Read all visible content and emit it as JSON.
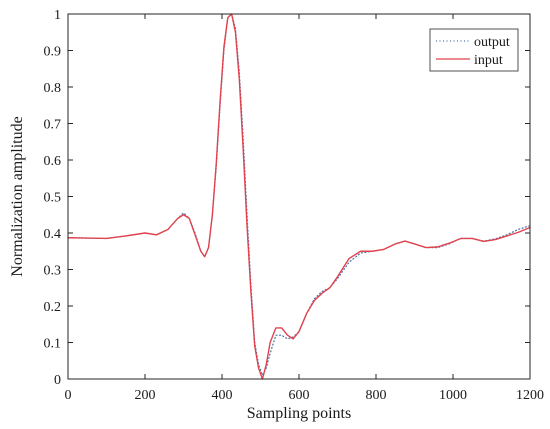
{
  "chart_data": {
    "type": "line",
    "xlabel": "Sampling points",
    "ylabel": "Normalization amplitude",
    "xlim": [
      0,
      1200
    ],
    "ylim": [
      0,
      1
    ],
    "xticks": [
      0,
      200,
      400,
      600,
      800,
      1000,
      1200
    ],
    "yticks": [
      0,
      0.1,
      0.2,
      0.3,
      0.4,
      0.5,
      0.6,
      0.7,
      0.8,
      0.9,
      1
    ],
    "x_tick_labels": [
      "0",
      "200",
      "400",
      "600",
      "800",
      "1000",
      "1200"
    ],
    "y_tick_labels": [
      "0",
      "0.1",
      "0.2",
      "0.3",
      "0.4",
      "0.5",
      "0.6",
      "0.7",
      "0.8",
      "0.9",
      "1"
    ],
    "grid": false,
    "box": true,
    "legend_position": "top-right",
    "series": [
      {
        "name": "output",
        "style": "dotted",
        "color": "#4a6fa5",
        "x": [
          0,
          50,
          100,
          150,
          200,
          230,
          260,
          285,
          300,
          315,
          330,
          345,
          355,
          365,
          375,
          385,
          395,
          405,
          415,
          425,
          435,
          445,
          455,
          465,
          475,
          485,
          495,
          505,
          515,
          525,
          540,
          555,
          570,
          585,
          600,
          620,
          640,
          660,
          680,
          700,
          730,
          760,
          790,
          820,
          850,
          875,
          900,
          930,
          960,
          990,
          1020,
          1050,
          1080,
          1110,
          1140,
          1170,
          1200
        ],
        "y": [
          0.387,
          0.386,
          0.385,
          0.392,
          0.4,
          0.395,
          0.41,
          0.44,
          0.455,
          0.44,
          0.4,
          0.35,
          0.335,
          0.36,
          0.45,
          0.58,
          0.75,
          0.9,
          0.99,
          1.0,
          0.96,
          0.84,
          0.66,
          0.45,
          0.26,
          0.1,
          0.04,
          0.01,
          0.03,
          0.07,
          0.12,
          0.12,
          0.11,
          0.115,
          0.13,
          0.18,
          0.22,
          0.24,
          0.25,
          0.275,
          0.32,
          0.345,
          0.35,
          0.355,
          0.37,
          0.378,
          0.37,
          0.36,
          0.36,
          0.37,
          0.385,
          0.385,
          0.378,
          0.384,
          0.395,
          0.41,
          0.42
        ]
      },
      {
        "name": "input",
        "style": "solid",
        "color": "#e0434e",
        "x": [
          0,
          50,
          100,
          150,
          200,
          230,
          260,
          285,
          300,
          315,
          330,
          345,
          355,
          365,
          375,
          385,
          395,
          405,
          415,
          425,
          435,
          445,
          455,
          465,
          475,
          485,
          495,
          505,
          515,
          525,
          540,
          555,
          570,
          585,
          600,
          620,
          640,
          660,
          680,
          700,
          730,
          760,
          790,
          820,
          850,
          875,
          900,
          930,
          960,
          990,
          1020,
          1050,
          1080,
          1110,
          1140,
          1170,
          1200
        ],
        "y": [
          0.387,
          0.386,
          0.385,
          0.392,
          0.4,
          0.395,
          0.41,
          0.44,
          0.45,
          0.44,
          0.395,
          0.35,
          0.335,
          0.36,
          0.45,
          0.59,
          0.76,
          0.91,
          0.99,
          1.0,
          0.95,
          0.82,
          0.63,
          0.42,
          0.24,
          0.09,
          0.03,
          0.0,
          0.04,
          0.1,
          0.14,
          0.14,
          0.12,
          0.11,
          0.13,
          0.18,
          0.215,
          0.235,
          0.25,
          0.28,
          0.33,
          0.35,
          0.35,
          0.355,
          0.37,
          0.378,
          0.37,
          0.36,
          0.362,
          0.372,
          0.385,
          0.385,
          0.377,
          0.382,
          0.392,
          0.402,
          0.415
        ]
      }
    ]
  },
  "legend": {
    "items": [
      {
        "label": "output",
        "color": "#4a6fa5",
        "style": "dotted"
      },
      {
        "label": "input",
        "color": "#e0434e",
        "style": "solid"
      }
    ]
  }
}
